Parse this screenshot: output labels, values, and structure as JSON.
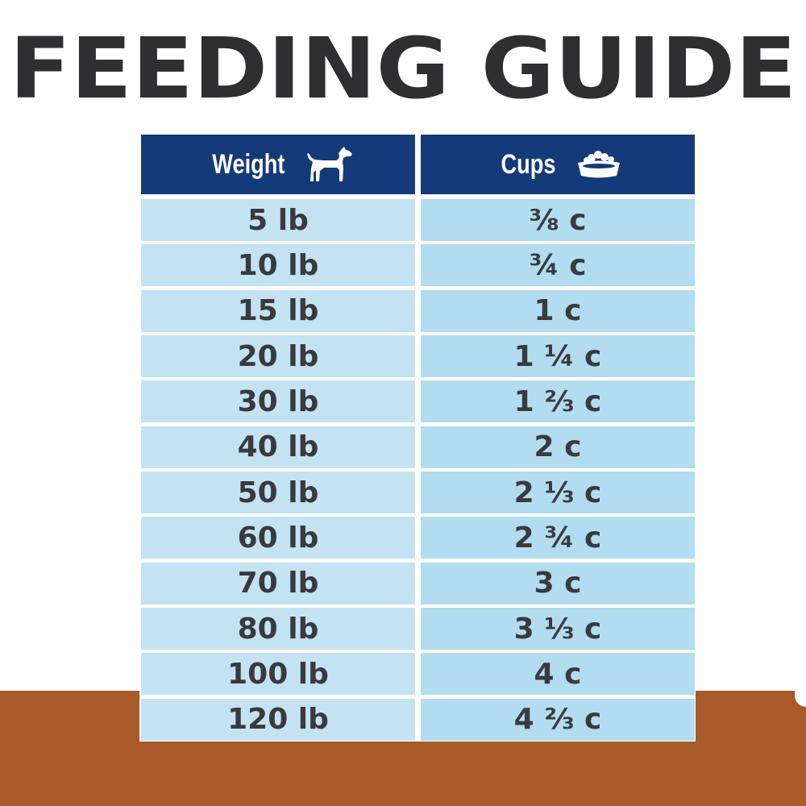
{
  "title": "FEEDING GUIDE",
  "colors": {
    "header_bg": "#153a7a",
    "weight_cell": "#c3e3f3",
    "cups_cell": "#b2dcef",
    "title": "#2f2f31",
    "floor": "#a85a2b"
  },
  "table": {
    "headers": {
      "weight": "Weight",
      "weight_icon": "dog-icon",
      "cups": "Cups",
      "cups_icon": "food-bowl-icon"
    },
    "rows": [
      {
        "weight": "5 lb",
        "cups": "⅜ c"
      },
      {
        "weight": "10 lb",
        "cups": "¾ c"
      },
      {
        "weight": "15 lb",
        "cups": "1 c"
      },
      {
        "weight": "20 lb",
        "cups": "1 ¼ c"
      },
      {
        "weight": "30 lb",
        "cups": "1 ⅔  c"
      },
      {
        "weight": "40 lb",
        "cups": "2 c"
      },
      {
        "weight": "50 lb",
        "cups": "2 ⅓ c"
      },
      {
        "weight": "60 lb",
        "cups": "2 ¾ c"
      },
      {
        "weight": "70 lb",
        "cups": "3 c"
      },
      {
        "weight": "80 lb",
        "cups": "3 ⅓ c"
      },
      {
        "weight": "100 lb",
        "cups": "4 c"
      },
      {
        "weight": "120 lb",
        "cups": "4 ⅔ c"
      }
    ]
  }
}
